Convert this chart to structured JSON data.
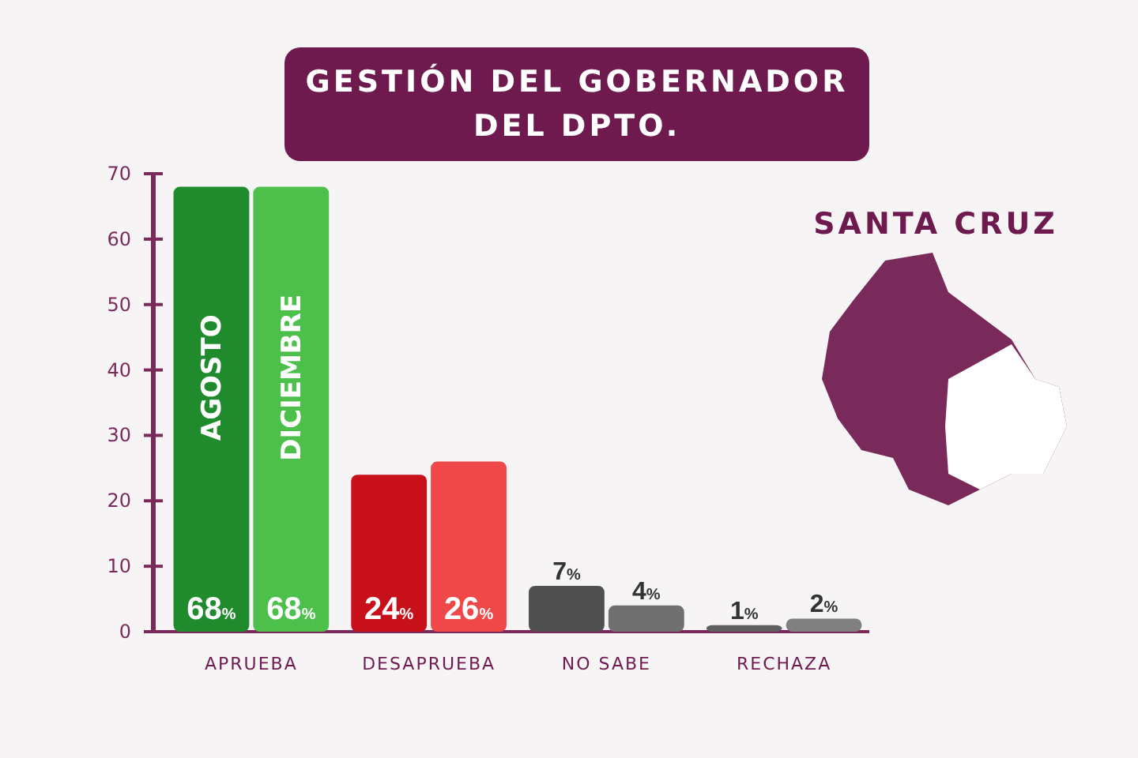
{
  "chart_data": {
    "type": "bar",
    "title": "GESTIÓN DEL GOBERNADOR DEL DPTO.",
    "annotations": [
      "SANTA CRUZ"
    ],
    "categories": [
      "APRUEBA",
      "DESAPRUEBA",
      "NO SABE",
      "RECHAZA"
    ],
    "series": [
      {
        "name": "AGOSTO",
        "colors": [
          "#1f8b2c",
          "#c8101a",
          "#505050",
          "#606060"
        ],
        "values": [
          68,
          24,
          7,
          1
        ],
        "value_labels": [
          "68%",
          "24%",
          "7%",
          "1%"
        ]
      },
      {
        "name": "DICIEMBRE",
        "colors": [
          "#4cc04a",
          "#f04848",
          "#707070",
          "#808080"
        ],
        "values": [
          68,
          26,
          4,
          2
        ],
        "value_labels": [
          "68%",
          "26%",
          "4%",
          "2%"
        ]
      }
    ],
    "ylim": [
      0,
      70
    ],
    "yticks": [
      0,
      10,
      20,
      30,
      40,
      50,
      60,
      70
    ],
    "grid": false
  }
}
